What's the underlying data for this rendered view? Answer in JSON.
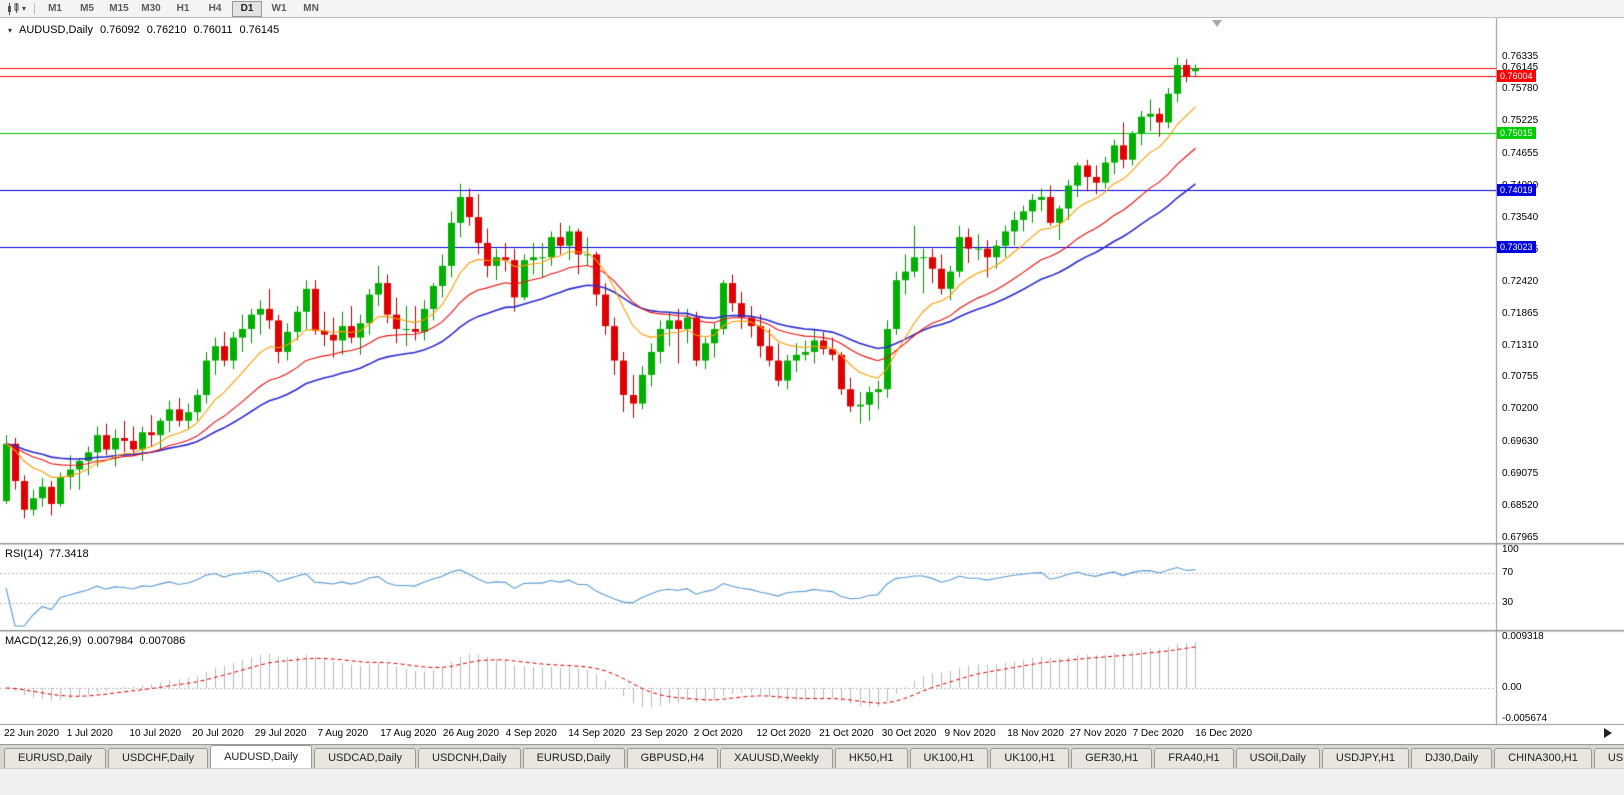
{
  "toolbar": {
    "timeframes": [
      "M1",
      "M5",
      "M15",
      "M30",
      "H1",
      "H4",
      "D1",
      "W1",
      "MN"
    ],
    "active_timeframe": "D1"
  },
  "chart": {
    "title": "AUDUSD,Daily",
    "ohlc": {
      "open": "0.76092",
      "high": "0.76210",
      "low": "0.76011",
      "close": "0.76145"
    },
    "price_axis": {
      "current": "0.76145"
    },
    "hlines": [
      {
        "price": 0.76004,
        "label": "0.76004",
        "color": "#ff0000"
      },
      {
        "price": 0.75015,
        "label": "0.75015",
        "color": "#00cc00"
      },
      {
        "price": 0.74019,
        "label": "0.74019",
        "color": "#0000e0"
      },
      {
        "price": 0.73023,
        "label": "0.73023",
        "color": "#0000e0"
      }
    ],
    "current_price_line": {
      "price": 0.76145,
      "color": "#ff0000"
    },
    "colors": {
      "candle_up": "#00b000",
      "candle_up_edge": "#008f00",
      "candle_down": "#e00000",
      "candle_down_edge": "#b40000",
      "ma_fast": "#ff9c00",
      "ma_medium": "#e81010",
      "ma_slow": "#2b2bd0",
      "rsi_line": "#5b9bd5",
      "macd_hist": "#b9b9b9",
      "macd_signal": "#e00000"
    }
  },
  "chart_data": {
    "type": "candlestick",
    "symbol": "AUDUSD",
    "timeframe": "Daily",
    "ylim": [
      0.6787,
      0.7702
    ],
    "price_ticks": [
      "0.76335",
      "0.75780",
      "0.75225",
      "0.74655",
      "0.74090",
      "0.73540",
      "0.72975",
      "0.72420",
      "0.71865",
      "0.71310",
      "0.70755",
      "0.70200",
      "0.69630",
      "0.69075",
      "0.68520",
      "0.67965"
    ],
    "date_labels": [
      "22 Jun 2020",
      "1 Jul 2020",
      "10 Jul 2020",
      "20 Jul 2020",
      "29 Jul 2020",
      "7 Aug 2020",
      "17 Aug 2020",
      "26 Aug 2020",
      "4 Sep 2020",
      "14 Sep 2020",
      "23 Sep 2020",
      "2 Oct 2020",
      "12 Oct 2020",
      "21 Oct 2020",
      "30 Oct 2020",
      "9 Nov 2020",
      "18 Nov 2020",
      "27 Nov 2020",
      "7 Dec 2020",
      "16 Dec 2020"
    ],
    "moving_averages": {
      "fast_period": 10,
      "medium_period": 21,
      "slow_period": 34
    },
    "rsi": {
      "label": "RSI(14)",
      "value": "77.3418",
      "period": 14,
      "axis": [
        "100",
        "70",
        "30"
      ],
      "levels": [
        70,
        30
      ]
    },
    "macd": {
      "label": "MACD(12,26,9)",
      "main_value": "0.007984",
      "signal_value": "0.007086",
      "axis": [
        "0.009318",
        "0.00",
        "-0.005674"
      ]
    },
    "candles": [
      [
        0.686,
        0.6975,
        0.6855,
        0.696
      ],
      [
        0.696,
        0.697,
        0.688,
        0.6895
      ],
      [
        0.6895,
        0.6905,
        0.683,
        0.6845
      ],
      [
        0.6845,
        0.688,
        0.6835,
        0.6865
      ],
      [
        0.6865,
        0.69,
        0.685,
        0.6885
      ],
      [
        0.6885,
        0.6895,
        0.6835,
        0.6855
      ],
      [
        0.6855,
        0.691,
        0.685,
        0.6902
      ],
      [
        0.6902,
        0.694,
        0.688,
        0.6915
      ],
      [
        0.6915,
        0.6935,
        0.688,
        0.693
      ],
      [
        0.693,
        0.6955,
        0.6905,
        0.6945
      ],
      [
        0.6945,
        0.699,
        0.692,
        0.6975
      ],
      [
        0.6975,
        0.6995,
        0.694,
        0.695
      ],
      [
        0.695,
        0.6985,
        0.692,
        0.697
      ],
      [
        0.697,
        0.7,
        0.6945,
        0.6965
      ],
      [
        0.6965,
        0.699,
        0.694,
        0.695
      ],
      [
        0.695,
        0.699,
        0.693,
        0.698
      ],
      [
        0.698,
        0.701,
        0.6955,
        0.6975
      ],
      [
        0.6975,
        0.7005,
        0.695,
        0.7
      ],
      [
        0.7,
        0.7035,
        0.698,
        0.702
      ],
      [
        0.702,
        0.704,
        0.699,
        0.7
      ],
      [
        0.7,
        0.703,
        0.6985,
        0.7015
      ],
      [
        0.7015,
        0.7055,
        0.7,
        0.7045
      ],
      [
        0.7045,
        0.712,
        0.703,
        0.7105
      ],
      [
        0.7105,
        0.7145,
        0.708,
        0.713
      ],
      [
        0.713,
        0.7155,
        0.7095,
        0.7105
      ],
      [
        0.7105,
        0.7155,
        0.709,
        0.7145
      ],
      [
        0.7145,
        0.7185,
        0.712,
        0.716
      ],
      [
        0.716,
        0.7195,
        0.7135,
        0.7185
      ],
      [
        0.7185,
        0.721,
        0.715,
        0.7195
      ],
      [
        0.7195,
        0.723,
        0.716,
        0.7175
      ],
      [
        0.7175,
        0.7185,
        0.71,
        0.712
      ],
      [
        0.712,
        0.717,
        0.7105,
        0.7155
      ],
      [
        0.7155,
        0.72,
        0.714,
        0.719
      ],
      [
        0.719,
        0.7245,
        0.716,
        0.723
      ],
      [
        0.723,
        0.7245,
        0.715,
        0.7157
      ],
      [
        0.7157,
        0.719,
        0.713,
        0.715
      ],
      [
        0.715,
        0.718,
        0.711,
        0.714
      ],
      [
        0.714,
        0.719,
        0.7115,
        0.7165
      ],
      [
        0.7165,
        0.72,
        0.7135,
        0.7145
      ],
      [
        0.7145,
        0.7185,
        0.7115,
        0.717
      ],
      [
        0.717,
        0.723,
        0.715,
        0.722
      ],
      [
        0.722,
        0.727,
        0.72,
        0.724
      ],
      [
        0.724,
        0.7255,
        0.717,
        0.7185
      ],
      [
        0.7185,
        0.7215,
        0.7135,
        0.716
      ],
      [
        0.716,
        0.72,
        0.713,
        0.716
      ],
      [
        0.716,
        0.72,
        0.714,
        0.7155
      ],
      [
        0.7155,
        0.721,
        0.714,
        0.7195
      ],
      [
        0.7195,
        0.724,
        0.7175,
        0.7235
      ],
      [
        0.7235,
        0.729,
        0.7215,
        0.727
      ],
      [
        0.727,
        0.7365,
        0.725,
        0.7345
      ],
      [
        0.7345,
        0.7413,
        0.732,
        0.739
      ],
      [
        0.739,
        0.7405,
        0.734,
        0.7355
      ],
      [
        0.7355,
        0.7395,
        0.729,
        0.731
      ],
      [
        0.731,
        0.7335,
        0.725,
        0.727
      ],
      [
        0.727,
        0.73,
        0.7245,
        0.7285
      ],
      [
        0.7285,
        0.731,
        0.726,
        0.728
      ],
      [
        0.728,
        0.73,
        0.719,
        0.7215
      ],
      [
        0.7215,
        0.729,
        0.721,
        0.728
      ],
      [
        0.728,
        0.731,
        0.7255,
        0.7285
      ],
      [
        0.7285,
        0.731,
        0.725,
        0.7285
      ],
      [
        0.7285,
        0.733,
        0.727,
        0.732
      ],
      [
        0.732,
        0.7345,
        0.729,
        0.7305
      ],
      [
        0.7305,
        0.734,
        0.728,
        0.733
      ],
      [
        0.733,
        0.7335,
        0.7255,
        0.729
      ],
      [
        0.729,
        0.732,
        0.727,
        0.729
      ],
      [
        0.729,
        0.7295,
        0.72,
        0.722
      ],
      [
        0.722,
        0.724,
        0.715,
        0.7165
      ],
      [
        0.7165,
        0.718,
        0.708,
        0.7105
      ],
      [
        0.7105,
        0.712,
        0.7015,
        0.7045
      ],
      [
        0.7045,
        0.708,
        0.7005,
        0.703
      ],
      [
        0.703,
        0.7095,
        0.702,
        0.708
      ],
      [
        0.708,
        0.7135,
        0.706,
        0.712
      ],
      [
        0.712,
        0.7175,
        0.71,
        0.716
      ],
      [
        0.716,
        0.719,
        0.713,
        0.7175
      ],
      [
        0.7175,
        0.7195,
        0.71,
        0.716
      ],
      [
        0.716,
        0.7195,
        0.7135,
        0.718
      ],
      [
        0.718,
        0.719,
        0.7095,
        0.7105
      ],
      [
        0.7105,
        0.7145,
        0.709,
        0.7135
      ],
      [
        0.7135,
        0.717,
        0.711,
        0.716
      ],
      [
        0.716,
        0.7245,
        0.715,
        0.724
      ],
      [
        0.724,
        0.7255,
        0.719,
        0.7205
      ],
      [
        0.7205,
        0.7225,
        0.716,
        0.718
      ],
      [
        0.718,
        0.72,
        0.7145,
        0.7165
      ],
      [
        0.7165,
        0.7185,
        0.711,
        0.713
      ],
      [
        0.713,
        0.716,
        0.7095,
        0.7105
      ],
      [
        0.7105,
        0.7135,
        0.706,
        0.707
      ],
      [
        0.707,
        0.7115,
        0.7055,
        0.7105
      ],
      [
        0.7105,
        0.7135,
        0.7085,
        0.7115
      ],
      [
        0.7115,
        0.714,
        0.7105,
        0.712
      ],
      [
        0.712,
        0.716,
        0.71,
        0.714
      ],
      [
        0.714,
        0.7155,
        0.7115,
        0.7125
      ],
      [
        0.7125,
        0.7145,
        0.7105,
        0.7115
      ],
      [
        0.7115,
        0.712,
        0.7045,
        0.7055
      ],
      [
        0.7055,
        0.7075,
        0.7015,
        0.7025
      ],
      [
        0.7025,
        0.705,
        0.6995,
        0.7028
      ],
      [
        0.7028,
        0.706,
        0.7,
        0.705
      ],
      [
        0.705,
        0.707,
        0.702,
        0.7055
      ],
      [
        0.7055,
        0.7175,
        0.704,
        0.716
      ],
      [
        0.716,
        0.726,
        0.715,
        0.7245
      ],
      [
        0.7245,
        0.729,
        0.722,
        0.726
      ],
      [
        0.726,
        0.734,
        0.725,
        0.7285
      ],
      [
        0.7285,
        0.73,
        0.7222,
        0.7285
      ],
      [
        0.7285,
        0.73,
        0.724,
        0.7265
      ],
      [
        0.7265,
        0.729,
        0.722,
        0.723
      ],
      [
        0.723,
        0.727,
        0.721,
        0.726
      ],
      [
        0.726,
        0.734,
        0.725,
        0.732
      ],
      [
        0.732,
        0.7335,
        0.7275,
        0.73
      ],
      [
        0.73,
        0.7325,
        0.728,
        0.73
      ],
      [
        0.73,
        0.7315,
        0.725,
        0.7285
      ],
      [
        0.7285,
        0.7315,
        0.7265,
        0.7305
      ],
      [
        0.7305,
        0.734,
        0.7285,
        0.733
      ],
      [
        0.733,
        0.7365,
        0.7305,
        0.735
      ],
      [
        0.735,
        0.7375,
        0.733,
        0.7365
      ],
      [
        0.7365,
        0.7395,
        0.7345,
        0.7385
      ],
      [
        0.7385,
        0.7405,
        0.7365,
        0.739
      ],
      [
        0.739,
        0.741,
        0.734,
        0.7345
      ],
      [
        0.7345,
        0.7375,
        0.7315,
        0.737
      ],
      [
        0.737,
        0.742,
        0.735,
        0.741
      ],
      [
        0.741,
        0.745,
        0.739,
        0.7445
      ],
      [
        0.7445,
        0.7455,
        0.74,
        0.7425
      ],
      [
        0.7425,
        0.7445,
        0.7395,
        0.7415
      ],
      [
        0.7415,
        0.746,
        0.7405,
        0.745
      ],
      [
        0.745,
        0.749,
        0.743,
        0.748
      ],
      [
        0.748,
        0.752,
        0.744,
        0.7455
      ],
      [
        0.7455,
        0.7505,
        0.7445,
        0.75
      ],
      [
        0.75,
        0.754,
        0.748,
        0.753
      ],
      [
        0.753,
        0.756,
        0.7505,
        0.7535
      ],
      [
        0.7535,
        0.7545,
        0.7495,
        0.752
      ],
      [
        0.752,
        0.758,
        0.751,
        0.757
      ],
      [
        0.757,
        0.76335,
        0.7555,
        0.762
      ],
      [
        0.762,
        0.763,
        0.759,
        0.76
      ],
      [
        0.76092,
        0.7621,
        0.76011,
        0.76145
      ]
    ]
  },
  "tabs": {
    "active_index": 2,
    "items": [
      "EURUSD,Daily",
      "USDCHF,Daily",
      "AUDUSD,Daily",
      "USDCAD,Daily",
      "USDCNH,Daily",
      "EURUSD,Daily",
      "GBPUSD,H4",
      "XAUUSD,Weekly",
      "HK50,H1",
      "UK100,H1",
      "UK100,H1",
      "GER30,H1",
      "FRA40,H1",
      "USOil,Daily",
      "USDJPY,H1",
      "DJ30,Daily",
      "CHINA300,H1",
      "US"
    ]
  }
}
